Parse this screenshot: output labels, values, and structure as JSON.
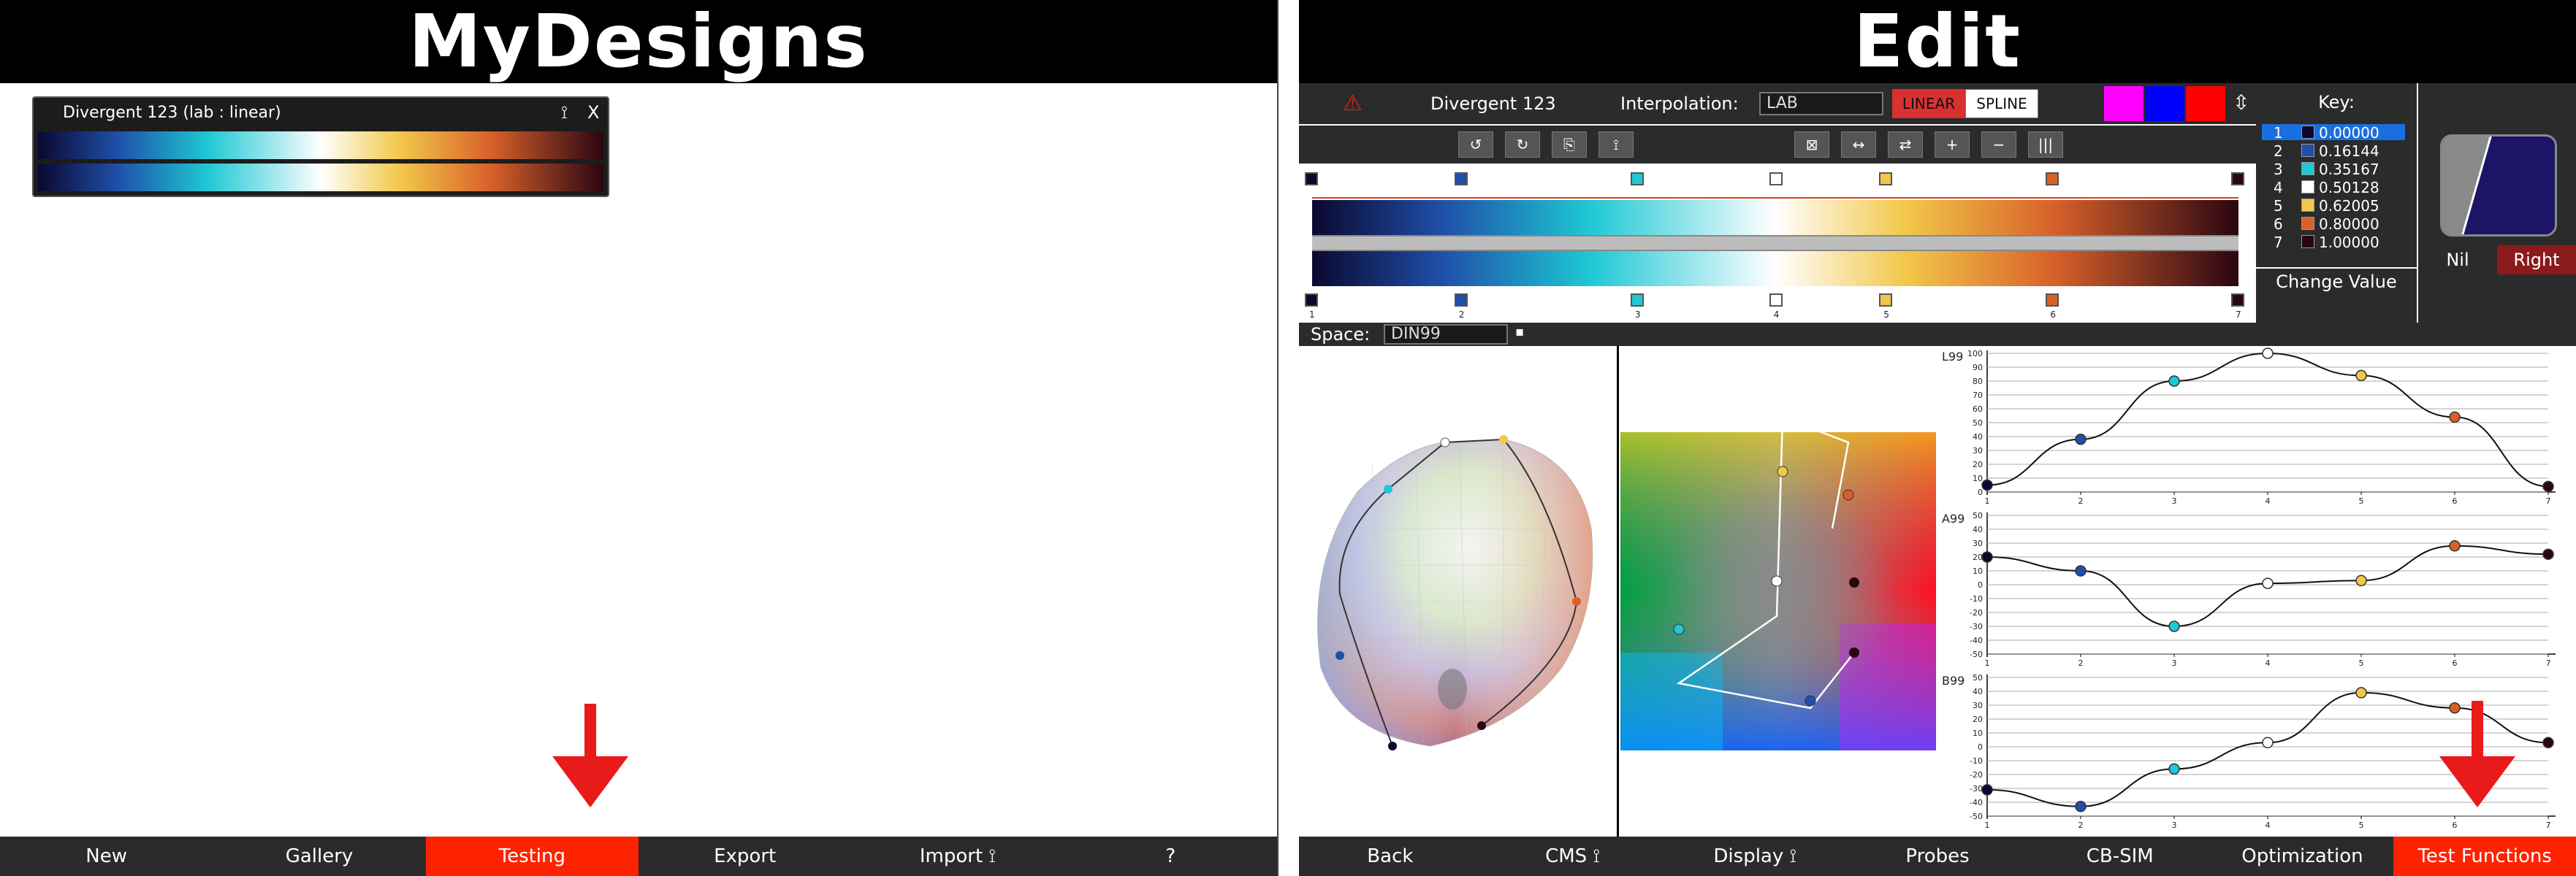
{
  "left": {
    "title": "MyDesigns",
    "design": {
      "name": "Divergent 123 (lab : linear)",
      "icon_resize": "⟟",
      "icon_close": "X"
    },
    "footer": [
      {
        "label": "New",
        "active": false
      },
      {
        "label": "Gallery",
        "active": false
      },
      {
        "label": "Testing",
        "active": true
      },
      {
        "label": "Export",
        "active": false
      },
      {
        "label": "Import ⟟",
        "active": false
      },
      {
        "label": "?",
        "active": false
      }
    ]
  },
  "right": {
    "title": "Edit",
    "toolbar": {
      "warning_icon": "⚠",
      "name": "Divergent 123",
      "interp_label": "Interpolation:",
      "interp_value": "LAB",
      "linear_label": "LINEAR",
      "spline_label": "SPLINE",
      "swatch_colors": [
        "#ff00ff",
        "#0000ff",
        "#ff0000"
      ]
    },
    "tools": [
      "↺",
      "↻",
      "⎘",
      "⟟",
      "⊠",
      "↔",
      "⇄",
      "+",
      "−",
      "|||"
    ],
    "stops": [
      {
        "num": "1",
        "color": "#0a0830",
        "value": "0.00000"
      },
      {
        "num": "2",
        "color": "#1f4fa8",
        "value": "0.16144"
      },
      {
        "num": "3",
        "color": "#1ec8d4",
        "value": "0.35167"
      },
      {
        "num": "4",
        "color": "#ffffff",
        "value": "0.50128"
      },
      {
        "num": "5",
        "color": "#f2c84a",
        "value": "0.62005"
      },
      {
        "num": "6",
        "color": "#d8612a",
        "value": "0.80000"
      },
      {
        "num": "7",
        "color": "#2a0612",
        "value": "1.00000"
      }
    ],
    "key_title": "Key:",
    "change_value": "Change Value",
    "nil_label": "Nil",
    "right_label": "Right",
    "space_label": "Space:",
    "space_value": "DIN99",
    "plot_labels": {
      "l": "L99",
      "a": "A99",
      "b": "B99"
    },
    "l_ticks": [
      "100",
      "90",
      "80",
      "70",
      "60",
      "50",
      "40",
      "30",
      "20",
      "10",
      "0"
    ],
    "ab_ticks": [
      "50",
      "40",
      "30",
      "20",
      "10",
      "0",
      "-10",
      "-20",
      "-30",
      "-40",
      "-50"
    ],
    "x_ticks": [
      "1",
      "2",
      "3",
      "4",
      "5",
      "6",
      "7"
    ],
    "curves": {
      "l": [
        5,
        38,
        80,
        100,
        84,
        54,
        4
      ],
      "a": [
        20,
        10,
        -30,
        1,
        3,
        28,
        22
      ],
      "b": [
        -31,
        -43,
        -16,
        3,
        39,
        28,
        3
      ]
    },
    "footer": [
      {
        "label": "Back",
        "active": false
      },
      {
        "label": "CMS ⟟",
        "active": false
      },
      {
        "label": "Display ⟟",
        "active": false
      },
      {
        "label": "Probes",
        "active": false
      },
      {
        "label": "CB-SIM",
        "active": false
      },
      {
        "label": "Optimization",
        "active": false
      },
      {
        "label": "Test Functions",
        "active": true
      }
    ]
  }
}
